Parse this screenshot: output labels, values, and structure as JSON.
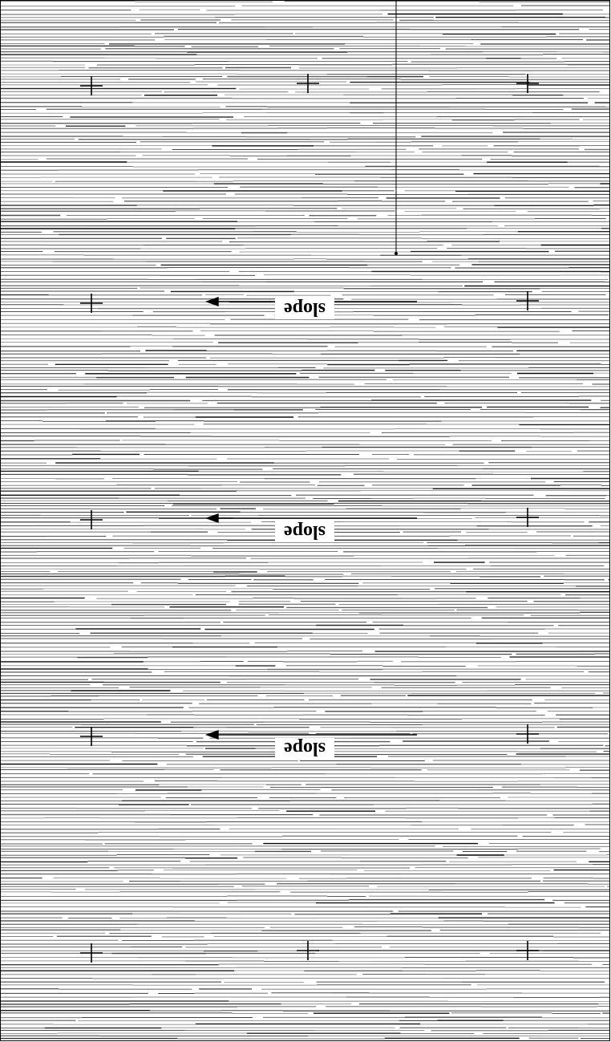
{
  "plan": {
    "ink_color": "#000000",
    "background_color": "#ffffff",
    "hatch": "dense horizontal lines",
    "marker_icon": "cross-marker-icon",
    "arrow_icon": "slope-arrow-icon"
  },
  "labels": {
    "slope_1": "slope",
    "slope_2": "slope",
    "slope_3": "slope"
  }
}
